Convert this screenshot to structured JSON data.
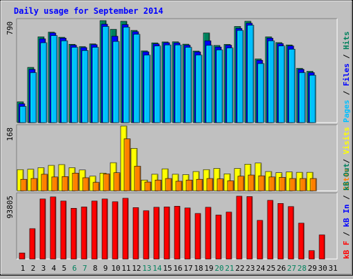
{
  "title": "Daily usage for September 2014",
  "colors": {
    "background": "#c0c0c0",
    "panel": "#c0c0c0",
    "title": "#0000ff",
    "hits": "#00805c",
    "files": "#0000ff",
    "pages": "#00c0ff",
    "visits": "#ffff00",
    "sites": "#ff8000",
    "kb_in": "#0000ff",
    "kb_out": "#00805c",
    "kb_f": "#ff0000",
    "weekend_label": "#00805c",
    "weekday_label": "#000000"
  },
  "chart_data": [
    {
      "type": "bar",
      "panel": "top",
      "ymax_label": "790",
      "ymax": 790,
      "right_label_parts": [
        {
          "text": "Pages",
          "color": "#00c0ff"
        },
        {
          "text": " / ",
          "color": "#000000"
        },
        {
          "text": "Files",
          "color": "#0000ff"
        },
        {
          "text": " / ",
          "color": "#000000"
        },
        {
          "text": "Hits",
          "color": "#00805c"
        }
      ],
      "categories": [
        "1",
        "2",
        "3",
        "4",
        "5",
        "6",
        "7",
        "8",
        "9",
        "10",
        "11",
        "12",
        "13",
        "14",
        "15",
        "16",
        "17",
        "18",
        "19",
        "20",
        "21",
        "22",
        "23",
        "24",
        "25",
        "26",
        "27",
        "28",
        "29",
        "30",
        "31"
      ],
      "series": [
        {
          "name": "Hits",
          "color": "#00805c",
          "values": [
            160,
            425,
            660,
            696,
            657,
            603,
            585,
            606,
            785,
            718,
            780,
            710,
            552,
            614,
            621,
            622,
            604,
            551,
            690,
            594,
            602,
            740,
            780,
            490,
            660,
            616,
            598,
            418,
            395,
            0,
            0
          ]
        },
        {
          "name": "Files",
          "color": "#0000ff",
          "values": [
            145,
            410,
            645,
            690,
            650,
            596,
            578,
            600,
            758,
            665,
            755,
            700,
            545,
            606,
            615,
            614,
            596,
            544,
            630,
            582,
            596,
            725,
            765,
            480,
            650,
            608,
            590,
            410,
            385,
            0,
            0
          ]
        },
        {
          "name": "Pages",
          "color": "#00c0ff",
          "values": [
            125,
            385,
            615,
            670,
            630,
            580,
            555,
            580,
            740,
            625,
            735,
            680,
            520,
            590,
            598,
            598,
            580,
            520,
            595,
            560,
            575,
            710,
            750,
            455,
            630,
            590,
            565,
            385,
            365,
            0,
            0
          ]
        }
      ]
    },
    {
      "type": "bar",
      "panel": "middle",
      "ymax_label": "168",
      "ymax": 168,
      "right_label_parts": [
        {
          "text": "Sites",
          "color": "#ff8000"
        },
        {
          "text": " / ",
          "color": "#000000"
        },
        {
          "text": "Visits",
          "color": "#ffff00"
        }
      ],
      "categories": [
        "1",
        "2",
        "3",
        "4",
        "5",
        "6",
        "7",
        "8",
        "9",
        "10",
        "11",
        "12",
        "13",
        "14",
        "15",
        "16",
        "17",
        "18",
        "19",
        "20",
        "21",
        "22",
        "23",
        "24",
        "25",
        "26",
        "27",
        "28",
        "29",
        "30",
        "31"
      ],
      "series": [
        {
          "name": "Visits",
          "color": "#ffff00",
          "values": [
            55,
            56,
            60,
            66,
            68,
            60,
            54,
            38,
            46,
            73,
            168,
            110,
            28,
            43,
            57,
            43,
            42,
            50,
            55,
            58,
            44,
            58,
            69,
            72,
            50,
            47,
            49,
            48,
            48,
            0,
            0
          ]
        },
        {
          "name": "Sites",
          "color": "#ff8000",
          "values": [
            30,
            32,
            43,
            36,
            37,
            46,
            34,
            22,
            44,
            47,
            135,
            64,
            23,
            28,
            32,
            25,
            28,
            30,
            32,
            31,
            26,
            38,
            41,
            39,
            36,
            35,
            32,
            32,
            32,
            0,
            0
          ]
        }
      ]
    },
    {
      "type": "bar",
      "panel": "bottom",
      "ymax_label": "93805",
      "ymax": 93805,
      "right_label_parts": [
        {
          "text": "kB F",
          "color": "#ff0000"
        },
        {
          "text": " / ",
          "color": "#000000"
        },
        {
          "text": "kB In",
          "color": "#0000ff"
        },
        {
          "text": " / ",
          "color": "#000000"
        },
        {
          "text": "kB Out",
          "color": "#00805c"
        }
      ],
      "categories": [
        "1",
        "2",
        "3",
        "4",
        "5",
        "6",
        "7",
        "8",
        "9",
        "10",
        "11",
        "12",
        "13",
        "14",
        "15",
        "16",
        "17",
        "18",
        "19",
        "20",
        "21",
        "22",
        "23",
        "24",
        "25",
        "26",
        "27",
        "28",
        "29",
        "30",
        "31"
      ],
      "series": [
        {
          "name": "kB F",
          "color": "#ff0000",
          "values": [
            8800,
            44000,
            87000,
            90000,
            84000,
            73500,
            75500,
            84000,
            87000,
            83000,
            88000,
            74500,
            70000,
            75000,
            75500,
            76500,
            74000,
            66000,
            75000,
            63800,
            68000,
            91000,
            90500,
            56000,
            85000,
            80500,
            76000,
            52000,
            12200,
            35000,
            0
          ]
        }
      ]
    }
  ],
  "x_labels": [
    {
      "t": "1",
      "weekend": false
    },
    {
      "t": "2",
      "weekend": false
    },
    {
      "t": "3",
      "weekend": false
    },
    {
      "t": "4",
      "weekend": false
    },
    {
      "t": "5",
      "weekend": false
    },
    {
      "t": "6",
      "weekend": true
    },
    {
      "t": "7",
      "weekend": true
    },
    {
      "t": "8",
      "weekend": false
    },
    {
      "t": "9",
      "weekend": false
    },
    {
      "t": "10",
      "weekend": false
    },
    {
      "t": "11",
      "weekend": false
    },
    {
      "t": "12",
      "weekend": false
    },
    {
      "t": "13",
      "weekend": true
    },
    {
      "t": "14",
      "weekend": true
    },
    {
      "t": "15",
      "weekend": false
    },
    {
      "t": "16",
      "weekend": false
    },
    {
      "t": "17",
      "weekend": false
    },
    {
      "t": "18",
      "weekend": false
    },
    {
      "t": "19",
      "weekend": false
    },
    {
      "t": "20",
      "weekend": true
    },
    {
      "t": "21",
      "weekend": true
    },
    {
      "t": "22",
      "weekend": false
    },
    {
      "t": "23",
      "weekend": false
    },
    {
      "t": "24",
      "weekend": false
    },
    {
      "t": "25",
      "weekend": false
    },
    {
      "t": "26",
      "weekend": false
    },
    {
      "t": "27",
      "weekend": true
    },
    {
      "t": "28",
      "weekend": true
    },
    {
      "t": "29",
      "weekend": false
    },
    {
      "t": "30",
      "weekend": false
    },
    {
      "t": "31",
      "weekend": false
    }
  ]
}
